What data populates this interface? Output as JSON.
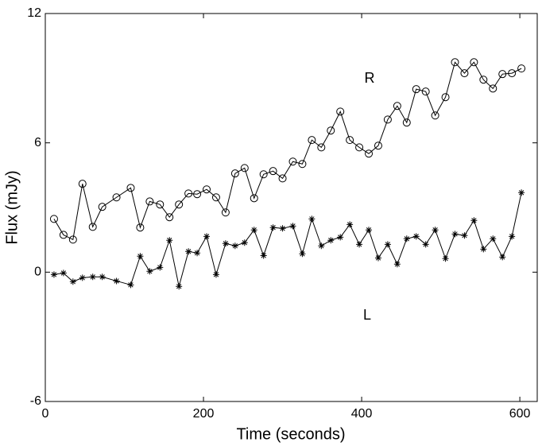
{
  "chart_data": {
    "type": "line",
    "xlabel": "Time (seconds)",
    "ylabel": "Flux (mJy)",
    "annotations": [
      "R",
      "L"
    ],
    "x": [
      11,
      23,
      35,
      47,
      60,
      72,
      90,
      108,
      120,
      132,
      145,
      157,
      169,
      181,
      192,
      204,
      216,
      228,
      240,
      252,
      264,
      276,
      288,
      300,
      313,
      325,
      337,
      349,
      361,
      373,
      385,
      397,
      409,
      421,
      433,
      445,
      457,
      469,
      481,
      493,
      506,
      518,
      530,
      542,
      554,
      566,
      578,
      590,
      602
    ],
    "series": [
      {
        "name": "R",
        "color": "#000000",
        "marker": "circle",
        "values": [
          2.47,
          1.73,
          1.51,
          4.1,
          2.1,
          3.03,
          3.47,
          3.91,
          2.07,
          3.28,
          3.14,
          2.55,
          3.14,
          3.65,
          3.62,
          3.84,
          3.47,
          2.77,
          4.58,
          4.83,
          3.43,
          4.54,
          4.69,
          4.35,
          5.13,
          5.02,
          6.13,
          5.79,
          6.57,
          7.45,
          6.13,
          5.79,
          5.5,
          5.87,
          7.08,
          7.71,
          6.94,
          8.49,
          8.38,
          7.27,
          8.12,
          9.74,
          9.23,
          9.74,
          8.93,
          8.52,
          9.19,
          9.23,
          9.45
        ]
      },
      {
        "name": "L",
        "color": "#000000",
        "marker": "asterisk",
        "values": [
          -0.11,
          -0.04,
          -0.44,
          -0.26,
          -0.22,
          -0.22,
          -0.41,
          -0.59,
          0.74,
          0.04,
          0.22,
          1.48,
          -0.66,
          0.96,
          0.89,
          1.66,
          -0.11,
          1.33,
          1.22,
          1.37,
          1.96,
          0.77,
          2.07,
          2.03,
          2.14,
          0.85,
          2.47,
          1.22,
          1.48,
          1.62,
          2.21,
          1.29,
          1.96,
          0.66,
          1.29,
          0.37,
          1.55,
          1.66,
          1.29,
          1.96,
          0.63,
          1.77,
          1.7,
          2.4,
          1.07,
          1.55,
          0.7,
          1.66,
          3.69
        ]
      }
    ],
    "xlim": [
      0,
      622
    ],
    "xticks": [
      0,
      200,
      400,
      600
    ],
    "ylim": [
      -6,
      12
    ],
    "yticks": [
      -6,
      0,
      6,
      12
    ]
  }
}
